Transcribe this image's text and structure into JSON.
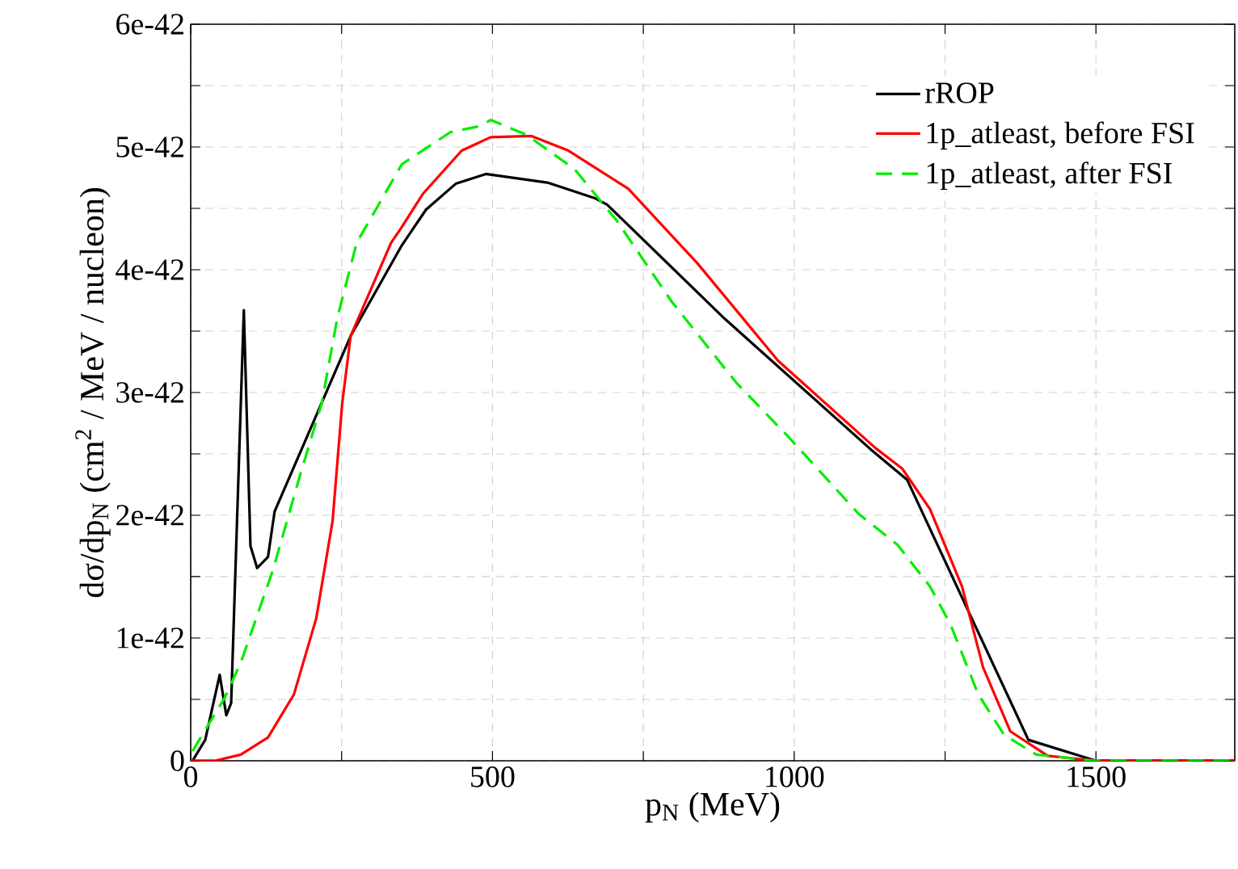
{
  "chart_data": {
    "type": "line",
    "xlabel": "p$_{N}$ (MeV)",
    "ylabel": "dσ/dp$_{N}$ (cm$^{2}$ / MeV / nucleon)",
    "xlim": [
      0,
      1730
    ],
    "ylim": [
      0,
      6e-42
    ],
    "xticks": [
      0,
      {
        "value": 250,
        "label": null
      },
      500,
      {
        "value": 750,
        "label": null
      },
      1000,
      {
        "value": 1250,
        "label": null
      },
      1500
    ],
    "yticks": [
      {
        "value": 0,
        "label": "0"
      },
      {
        "value": 5e-43,
        "label": null
      },
      {
        "value": 1e-42,
        "label": "1e-42"
      },
      {
        "value": 1.5e-42,
        "label": null
      },
      {
        "value": 2e-42,
        "label": "2e-42"
      },
      {
        "value": 2.5e-42,
        "label": null
      },
      {
        "value": 3e-42,
        "label": "3e-42"
      },
      {
        "value": 3.5e-42,
        "label": null
      },
      {
        "value": 4e-42,
        "label": "4e-42"
      },
      {
        "value": 4.5e-42,
        "label": null
      },
      {
        "value": 5e-42,
        "label": "5e-42"
      },
      {
        "value": 5.5e-42,
        "label": null
      },
      {
        "value": 6e-42,
        "label": "6e-42"
      }
    ],
    "grid": true,
    "legend": "top right",
    "marker": "none",
    "series": [
      {
        "name": "rROP",
        "color": "#000000",
        "line_style": "solid",
        "x": [
          0,
          3,
          24,
          48,
          59,
          67,
          88,
          99,
          110,
          128,
          139,
          265,
          350,
          390,
          439,
          489,
          591,
          671,
          690,
          885,
          1126,
          1187,
          1388,
          1500,
          1730
        ],
        "values": [
          0,
          0,
          1.7e-43,
          7e-43,
          3.7e-43,
          4.7e-43,
          3.67e-42,
          1.75e-42,
          1.57e-42,
          1.66e-42,
          2.03e-42,
          3.46e-42,
          4.2e-42,
          4.49e-42,
          4.7e-42,
          4.78e-42,
          4.71e-42,
          4.58e-42,
          4.53e-42,
          3.6e-42,
          2.54e-42,
          2.29e-42,
          1.7e-43,
          0,
          0
        ]
      },
      {
        "name": "1p_atleast, before FSI",
        "color": "#ff0000",
        "line_style": "solid",
        "x": [
          0,
          40,
          83,
          128,
          171,
          208,
          235,
          251,
          265,
          332,
          350,
          385,
          449,
          497,
          564,
          626,
          725,
          840,
          973,
          1134,
          1179,
          1225,
          1278,
          1313,
          1358,
          1420,
          1500,
          1730
        ],
        "values": [
          0,
          0,
          5e-44,
          1.9e-43,
          5.4e-43,
          1.16e-42,
          1.95e-42,
          2.91e-42,
          3.46e-42,
          4.22e-42,
          4.35e-42,
          4.62e-42,
          4.97e-42,
          5.08e-42,
          5.09e-42,
          4.97e-42,
          4.66e-42,
          4.05e-42,
          3.26e-42,
          2.55e-42,
          2.38e-42,
          2.05e-42,
          1.42e-42,
          7.6e-43,
          2.4e-43,
          4e-44,
          0,
          0
        ]
      },
      {
        "name": "1p_atleast, after FSI",
        "color": "#00ee00",
        "line_style": "dashed",
        "x": [
          3,
          56,
          83,
          136,
          182,
          217,
          243,
          275,
          350,
          430,
          479,
          497,
          556,
          636,
          706,
          797,
          904,
          992,
          1107,
          1171,
          1225,
          1259,
          1305,
          1348,
          1401,
          1500,
          1730
        ],
        "values": [
          8e-44,
          5.1e-43,
          8e-43,
          1.55e-42,
          2.34e-42,
          2.91e-42,
          3.61e-42,
          4.22e-42,
          4.86e-42,
          5.12e-42,
          5.17e-42,
          5.22e-42,
          5.1e-42,
          4.82e-42,
          4.4e-42,
          3.74e-42,
          3.08e-42,
          2.63e-42,
          2.01e-42,
          1.76e-42,
          1.42e-42,
          1.11e-42,
          5.4e-43,
          2.1e-43,
          5e-44,
          0,
          0
        ]
      }
    ]
  }
}
